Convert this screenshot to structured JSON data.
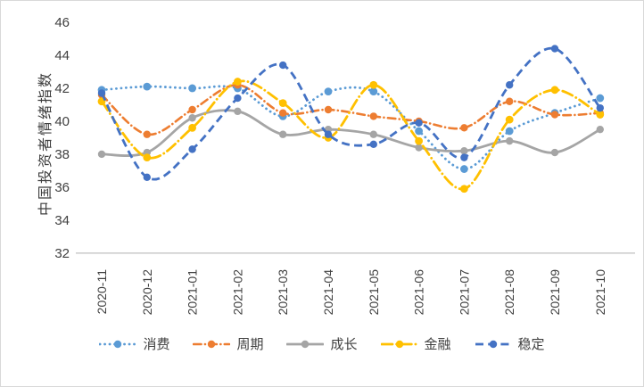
{
  "chart_data": {
    "type": "line",
    "title": "",
    "ylabel": "中国投资者情绪指数",
    "xlabel": "",
    "ylim": [
      32,
      46
    ],
    "yticks": [
      46,
      44,
      42,
      40,
      38,
      36,
      34,
      32
    ],
    "grid": false,
    "legend_position": "bottom",
    "smoothed": true,
    "axis_color": "#bfbfbf",
    "text_color": "#404040",
    "categories": [
      "2020-11",
      "2020-12",
      "2021-01",
      "2021-02",
      "2021-03",
      "2021-04",
      "2021-05",
      "2021-06",
      "2021-07",
      "2021-08",
      "2021-09",
      "2021-10"
    ],
    "series": [
      {
        "name": "消费",
        "color": "#5B9BD5",
        "dash": "dotted",
        "values": [
          41.9,
          42.1,
          42.0,
          42.0,
          40.3,
          41.8,
          41.8,
          39.4,
          37.1,
          39.4,
          40.5,
          41.4
        ]
      },
      {
        "name": "周期",
        "color": "#ED7D31",
        "dash": "dash-dot",
        "values": [
          41.6,
          39.2,
          40.7,
          42.2,
          40.5,
          40.7,
          40.3,
          40.0,
          39.6,
          41.2,
          40.4,
          40.5
        ]
      },
      {
        "name": "成长",
        "color": "#A5A5A5",
        "dash": "solid",
        "values": [
          38.0,
          38.1,
          40.2,
          40.6,
          39.2,
          39.5,
          39.2,
          38.4,
          38.2,
          38.8,
          38.1,
          39.5
        ]
      },
      {
        "name": "金融",
        "color": "#FFC000",
        "dash": "long-dash-dot",
        "values": [
          41.2,
          37.8,
          39.6,
          42.4,
          41.1,
          39.0,
          42.2,
          38.8,
          35.9,
          40.1,
          41.9,
          40.4
        ]
      },
      {
        "name": "稳定",
        "color": "#4472C4",
        "dash": "dash",
        "values": [
          41.7,
          36.6,
          38.3,
          41.4,
          43.4,
          39.2,
          38.6,
          39.9,
          37.8,
          42.2,
          44.4,
          40.8
        ]
      }
    ]
  }
}
